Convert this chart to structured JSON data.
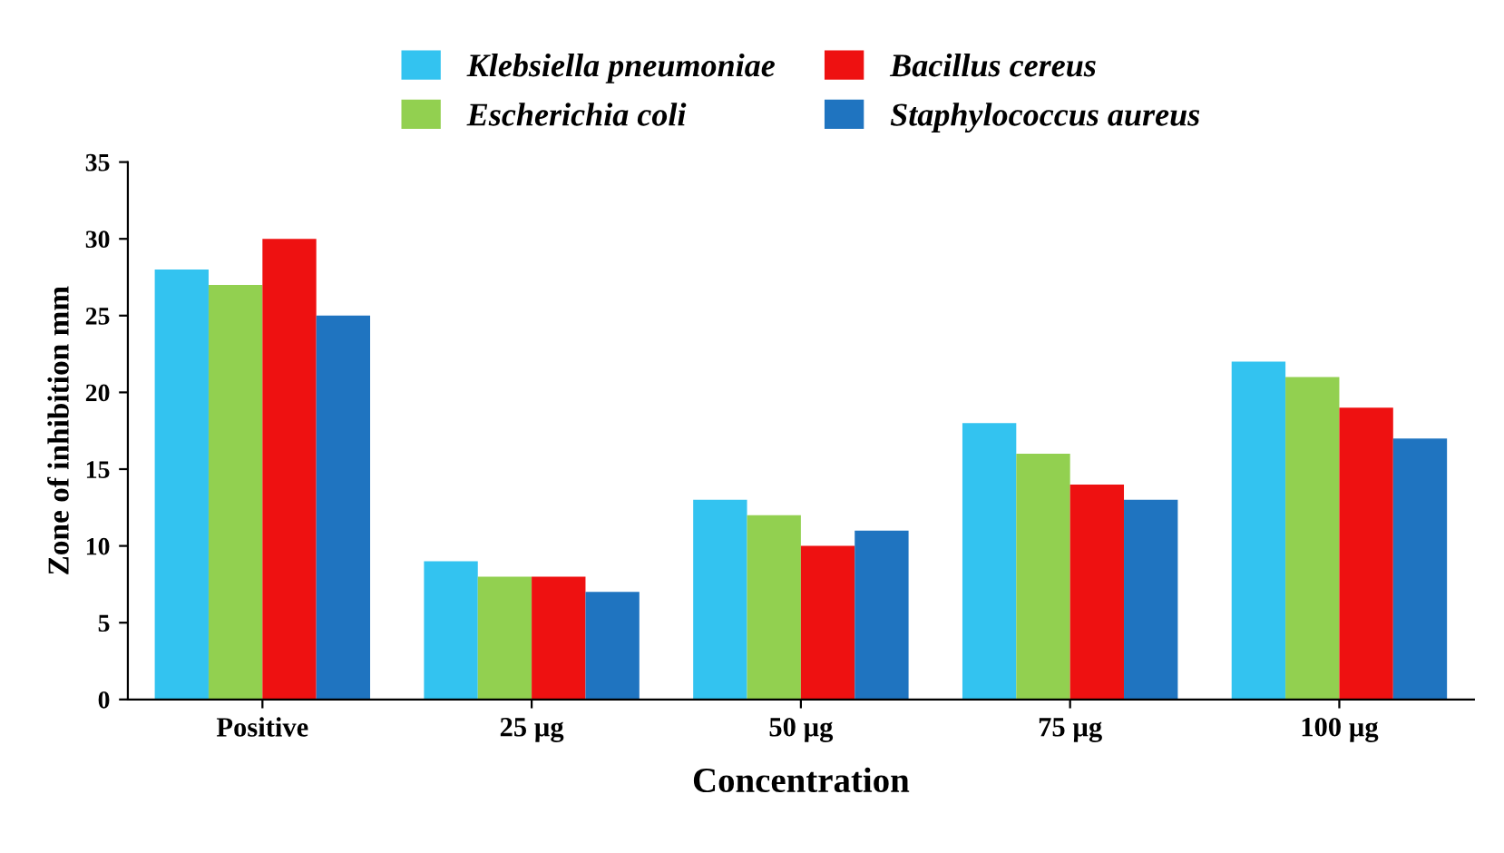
{
  "chart_data": {
    "type": "bar",
    "xlabel": "Concentration",
    "ylabel": "Zone of inhibition mm",
    "categories": [
      "Positive",
      "25 µg",
      "50 µg",
      "75 µg",
      "100 µg"
    ],
    "series": [
      {
        "name": "Klebsiella pneumoniae",
        "color": "#33c3f0",
        "values": [
          28,
          9,
          13,
          18,
          22
        ]
      },
      {
        "name": "Escherichia coli",
        "color": "#92d050",
        "values": [
          27,
          8,
          12,
          16,
          21
        ]
      },
      {
        "name": "Bacillus cereus",
        "color": "#ee1111",
        "values": [
          30,
          8,
          10,
          14,
          19
        ]
      },
      {
        "name": "Staphylococcus aureus",
        "color": "#1f74c0",
        "values": [
          25,
          7,
          11,
          13,
          17
        ]
      }
    ],
    "ylim": [
      0,
      35
    ],
    "yticks": [
      0,
      5,
      10,
      15,
      20,
      25,
      30,
      35
    ],
    "grid": false,
    "legend": "top"
  }
}
